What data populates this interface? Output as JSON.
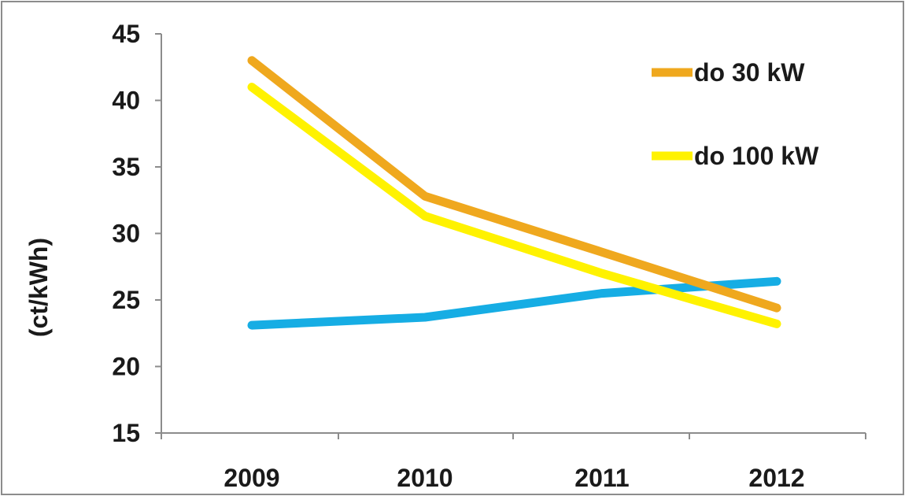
{
  "chart_data": {
    "type": "line",
    "categories": [
      "2009",
      "2010",
      "2011",
      "2012"
    ],
    "ylabel": "(ct/kWh)",
    "ylim": [
      15,
      45
    ],
    "yticks": [
      "15",
      "20",
      "25",
      "30",
      "35",
      "40",
      "45"
    ],
    "grid": false,
    "legend_placement": "top-right",
    "series": [
      {
        "name": "do 30 kW",
        "color": "#EFA81E",
        "values": [
          43.0,
          32.8,
          28.6,
          24.4
        ]
      },
      {
        "name": "do 100 kW",
        "color": "#FFF200",
        "values": [
          41.0,
          31.3,
          27.0,
          23.2
        ]
      },
      {
        "color": "#16ADE4",
        "values": [
          23.1,
          23.7,
          25.5,
          26.4
        ]
      }
    ]
  }
}
